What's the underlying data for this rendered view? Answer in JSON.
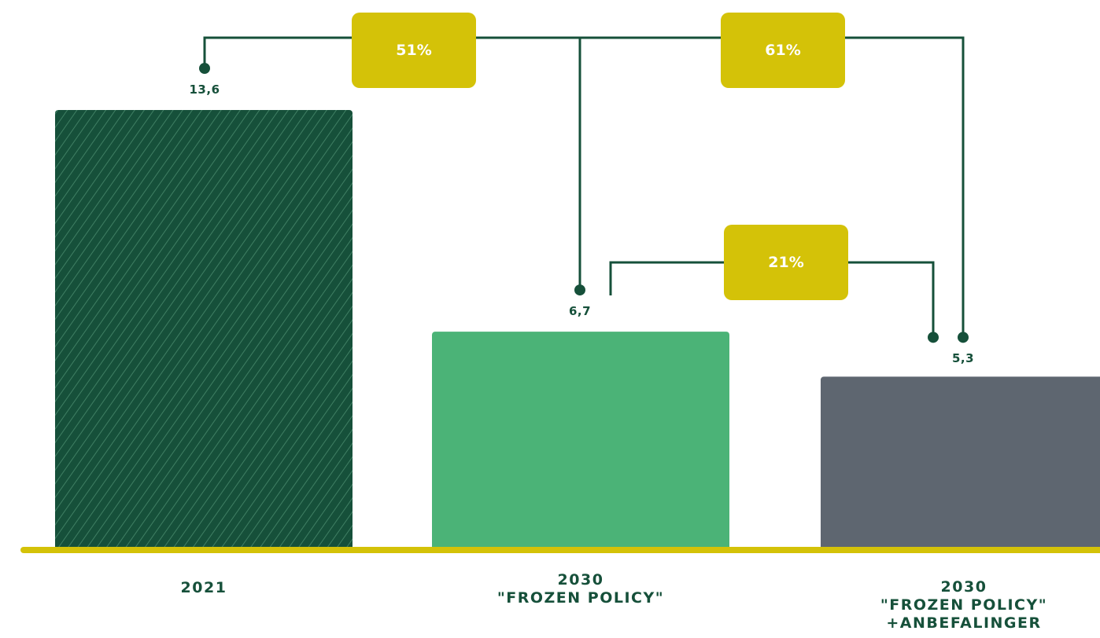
{
  "chart_data": {
    "type": "bar",
    "categories": [
      [
        "2021"
      ],
      [
        "2030",
        "\"FROZEN POLICY\""
      ],
      [
        "2030",
        "\"FROZEN POLICY\"",
        "+ANBEFALINGER"
      ]
    ],
    "values": [
      13.6,
      6.7,
      5.3
    ],
    "value_labels": [
      "13,6",
      "6,7",
      "5,3"
    ],
    "ylim": [
      0,
      16
    ],
    "grid": false,
    "bar_colors": [
      "#16503a",
      "#4bb377",
      "#5e6670"
    ],
    "bar_patterns": [
      "diagonal-stripes",
      "solid",
      "solid"
    ],
    "baseline_color": "#d4c208",
    "annotations": [
      {
        "label": "51%",
        "from": 0,
        "to": 1
      },
      {
        "label": "61%",
        "from": 0,
        "to": 2
      },
      {
        "label": "21%",
        "from": 1,
        "to": 2
      }
    ],
    "annotation_color": "#d4c208",
    "connector_color": "#16503a"
  }
}
